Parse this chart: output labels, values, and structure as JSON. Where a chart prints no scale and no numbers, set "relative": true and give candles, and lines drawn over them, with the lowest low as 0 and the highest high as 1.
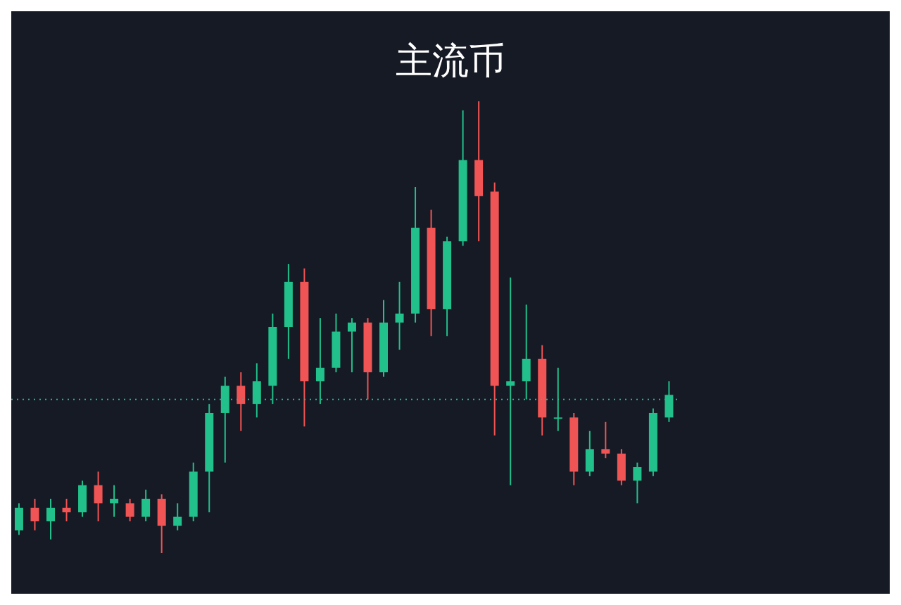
{
  "chart_data": {
    "type": "candlestick",
    "title": "主流币",
    "relative": true,
    "categories": [
      null,
      null,
      null,
      null,
      null,
      null,
      null,
      null,
      null,
      null,
      null,
      null,
      null,
      null,
      null,
      null,
      null,
      null,
      null,
      null,
      null,
      null,
      null,
      null,
      null,
      null,
      null,
      null,
      null,
      null,
      null,
      null,
      null,
      null,
      null,
      null,
      null,
      null,
      null,
      null,
      null,
      null
    ],
    "ohlc": [
      [
        0.05,
        0.11,
        0.04,
        0.1
      ],
      [
        0.1,
        0.12,
        0.05,
        0.07
      ],
      [
        0.07,
        0.12,
        0.03,
        0.1
      ],
      [
        0.1,
        0.12,
        0.07,
        0.09
      ],
      [
        0.09,
        0.16,
        0.08,
        0.15
      ],
      [
        0.15,
        0.18,
        0.07,
        0.11
      ],
      [
        0.11,
        0.15,
        0.08,
        0.12
      ],
      [
        0.11,
        0.12,
        0.07,
        0.08
      ],
      [
        0.08,
        0.14,
        0.07,
        0.12
      ],
      [
        0.12,
        0.13,
        0.0,
        0.06
      ],
      [
        0.06,
        0.11,
        0.05,
        0.08
      ],
      [
        0.08,
        0.2,
        0.07,
        0.18
      ],
      [
        0.18,
        0.33,
        0.09,
        0.31
      ],
      [
        0.31,
        0.39,
        0.2,
        0.37
      ],
      [
        0.37,
        0.4,
        0.27,
        0.33
      ],
      [
        0.33,
        0.42,
        0.3,
        0.38
      ],
      [
        0.37,
        0.53,
        0.33,
        0.5
      ],
      [
        0.5,
        0.64,
        0.43,
        0.6
      ],
      [
        0.6,
        0.63,
        0.28,
        0.38
      ],
      [
        0.38,
        0.52,
        0.33,
        0.41
      ],
      [
        0.41,
        0.53,
        0.4,
        0.49
      ],
      [
        0.49,
        0.52,
        0.4,
        0.51
      ],
      [
        0.51,
        0.52,
        0.34,
        0.4
      ],
      [
        0.4,
        0.56,
        0.39,
        0.51
      ],
      [
        0.51,
        0.6,
        0.45,
        0.53
      ],
      [
        0.53,
        0.81,
        0.51,
        0.72
      ],
      [
        0.72,
        0.76,
        0.48,
        0.54
      ],
      [
        0.54,
        0.7,
        0.48,
        0.69
      ],
      [
        0.69,
        0.98,
        0.68,
        0.87
      ],
      [
        0.87,
        1.0,
        0.69,
        0.79
      ],
      [
        0.8,
        0.82,
        0.26,
        0.37
      ],
      [
        0.37,
        0.61,
        0.15,
        0.38
      ],
      [
        0.38,
        0.55,
        0.34,
        0.43
      ],
      [
        0.43,
        0.46,
        0.26,
        0.3
      ],
      [
        0.3,
        0.41,
        0.27,
        0.3
      ],
      [
        0.3,
        0.31,
        0.15,
        0.18
      ],
      [
        0.18,
        0.27,
        0.17,
        0.23
      ],
      [
        0.23,
        0.29,
        0.21,
        0.22
      ],
      [
        0.22,
        0.23,
        0.15,
        0.16
      ],
      [
        0.16,
        0.2,
        0.11,
        0.19
      ],
      [
        0.18,
        0.32,
        0.17,
        0.31
      ],
      [
        0.3,
        0.38,
        0.29,
        0.35
      ]
    ],
    "colors": [
      "#22c08a",
      "#f05454",
      "#22c08a",
      "#f05454",
      "#22c08a",
      "#f05454",
      "#22c08a",
      "#f05454",
      "#22c08a",
      "#f05454",
      "#22c08a",
      "#22c08a",
      "#22c08a",
      "#22c08a",
      "#f05454",
      "#22c08a",
      "#22c08a",
      "#22c08a",
      "#f05454",
      "#22c08a",
      "#22c08a",
      "#22c08a",
      "#f05454",
      "#22c08a",
      "#22c08a",
      "#22c08a",
      "#f05454",
      "#22c08a",
      "#22c08a",
      "#f05454",
      "#f05454",
      "#22c08a",
      "#22c08a",
      "#f05454",
      "#22c08a",
      "#f05454",
      "#22c08a",
      "#f05454",
      "#f05454",
      "#22c08a",
      "#22c08a",
      "#22c08a"
    ],
    "ref_lines": [
      {
        "axis": "y",
        "value": 0.34,
        "color": "#2fb5a0",
        "line_style": "dotted"
      }
    ]
  }
}
